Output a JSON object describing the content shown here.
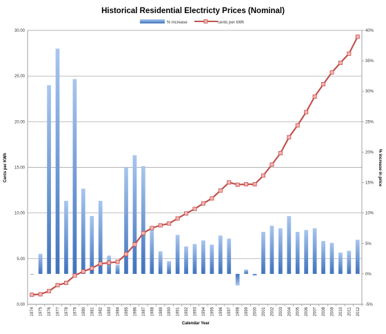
{
  "chart_data": {
    "type": "bar+line",
    "title": "Historical Residential Electricty Prices (Nominal)",
    "xlabel": "Calendar Year",
    "ylabel_left": "Cents per KWh",
    "ylabel_right": "% increase in price",
    "ylim_left": [
      0,
      30
    ],
    "ylim_right": [
      -5,
      40
    ],
    "yticks_left": [
      "0.00",
      "5.00",
      "10.00",
      "15.00",
      "20.00",
      "25.00",
      "30.00"
    ],
    "yticks_right": [
      "-5%",
      "0%",
      "5%",
      "10%",
      "15%",
      "20%",
      "25%",
      "30%",
      "35%",
      "40%"
    ],
    "legend_position": "top-center",
    "grid": true,
    "categories": [
      "1974",
      "1975",
      "1976",
      "1977",
      "1978",
      "1979",
      "1980",
      "1981",
      "1982",
      "1983",
      "1984",
      "1985",
      "1986",
      "1987",
      "1988",
      "1989",
      "1990",
      "1991",
      "1992",
      "1993",
      "1994",
      "1995",
      "1996",
      "1997",
      "1998",
      "1999",
      "2000",
      "2001",
      "2002",
      "2003",
      "2004",
      "2005",
      "2006",
      "2007",
      "2008",
      "2009",
      "2010",
      "2011",
      "2012"
    ],
    "series": [
      {
        "name": "% increase",
        "kind": "bar",
        "axis": "right",
        "color": "#4f81bd",
        "values": [
          0.0,
          3.3,
          31.0,
          37.0,
          12.0,
          32.0,
          14.0,
          9.5,
          12.0,
          3.0,
          1.5,
          17.5,
          19.5,
          17.7,
          7.4,
          3.7,
          2.1,
          6.4,
          4.5,
          4.9,
          5.5,
          4.8,
          6.3,
          5.8,
          -1.9,
          0.7,
          -0.3,
          6.9,
          7.9,
          7.5,
          9.5,
          6.9,
          7.2,
          7.5,
          5.4,
          5.1,
          3.5,
          3.8,
          5.6
        ]
      },
      {
        "name": "cents per kWh",
        "kind": "line",
        "axis": "left",
        "color": "#c0504d",
        "values": [
          1.05,
          1.1,
          1.45,
          2.1,
          2.35,
          3.15,
          3.6,
          3.95,
          4.45,
          4.55,
          4.65,
          5.5,
          6.55,
          7.8,
          8.35,
          8.65,
          8.85,
          9.4,
          9.95,
          10.45,
          11.05,
          11.6,
          12.45,
          13.35,
          13.1,
          13.15,
          13.15,
          14.1,
          15.3,
          16.55,
          18.3,
          19.6,
          21.05,
          22.75,
          24.1,
          25.4,
          26.45,
          27.45,
          29.3
        ]
      }
    ]
  }
}
